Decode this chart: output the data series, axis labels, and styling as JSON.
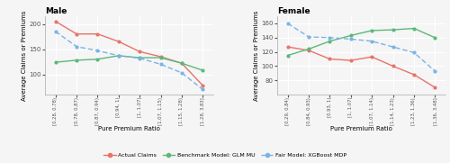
{
  "male_xtick_labels": [
    "[0.28, 0.78)",
    "[0.78, 0.87)",
    "[0.87, 0.94)",
    "[0.94, 1)",
    "[1, 1.07)",
    "[1.07, 1.15)",
    "[1.15, 1.28)",
    "[1.28, 3.83]"
  ],
  "female_xtick_labels": [
    "[0.29, 0.84)",
    "[0.84, 0.93)",
    "[0.93, 1)",
    "[1, 1.07)",
    "[1.07, 1.14)",
    "[1.14, 1.23)",
    "[1.23, 1.36)",
    "[1.36, 3.48]"
  ],
  "male_actual": [
    205,
    180,
    180,
    165,
    145,
    135,
    122,
    78
  ],
  "male_glm": [
    124,
    128,
    130,
    137,
    133,
    133,
    122,
    108
  ],
  "male_xgb": [
    185,
    155,
    147,
    137,
    132,
    120,
    103,
    70
  ],
  "female_actual": [
    127,
    122,
    110,
    108,
    113,
    100,
    88,
    70
  ],
  "female_glm": [
    115,
    124,
    135,
    143,
    150,
    151,
    153,
    140
  ],
  "female_xgb": [
    160,
    141,
    140,
    138,
    135,
    127,
    119,
    93
  ],
  "male_ylim": [
    60,
    215
  ],
  "female_ylim": [
    60,
    170
  ],
  "male_yticks": [
    100,
    150,
    200
  ],
  "female_yticks": [
    80,
    100,
    120,
    140,
    160
  ],
  "color_actual": "#e8736b",
  "color_glm": "#5cb87a",
  "color_xgb": "#7ab3e8",
  "title_male": "Male",
  "title_female": "Female",
  "xlabel": "Pure Premium Ratio",
  "ylabel": "Average Claims or Premiums",
  "legend_actual": "Actual Claims",
  "legend_glm": "Benchmark Model: GLM MU",
  "legend_xgb": "Fair Model: XGBoost MDP",
  "bg_color": "#f5f5f5",
  "fig_width": 5.0,
  "fig_height": 1.81,
  "dpi": 100
}
